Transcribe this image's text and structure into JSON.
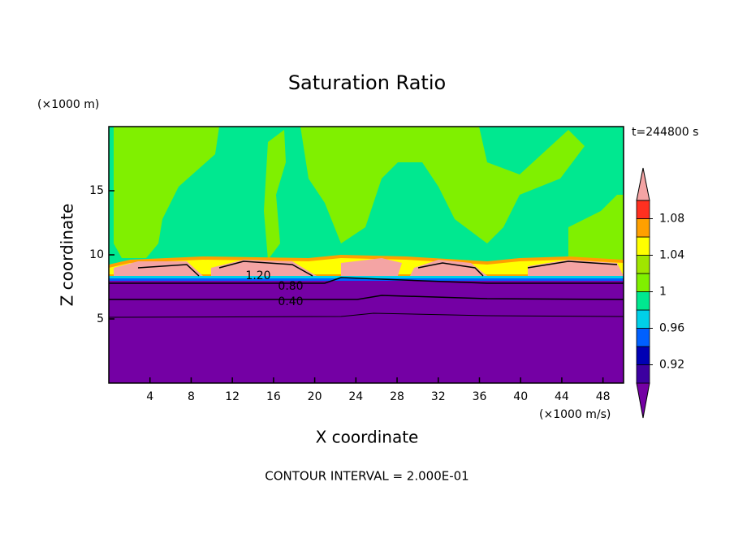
{
  "chart_data": {
    "type": "contour",
    "title": "Saturation Ratio",
    "x_label": "X coordinate",
    "y_label": "Z coordinate",
    "x_unit": "(×1000 m/s)",
    "y_unit": "(×1000 m)",
    "time_label": "t=244800 s",
    "footer": "CONTOUR INTERVAL = 2.000E-01",
    "xlim": [
      0,
      50
    ],
    "xticks": [
      4,
      8,
      12,
      16,
      20,
      24,
      28,
      32,
      36,
      40,
      44,
      48
    ],
    "ylim": [
      0,
      20
    ],
    "yticks": [
      5,
      10,
      15
    ],
    "contour_labels": [
      {
        "value": 1.2,
        "label": "1.20"
      },
      {
        "value": 0.8,
        "label": "0.80"
      },
      {
        "value": 0.4,
        "label": "0.40"
      }
    ],
    "colorbar": {
      "levels": [
        0.9,
        0.92,
        0.94,
        0.96,
        0.98,
        1,
        1.02,
        1.04,
        1.06,
        1.08,
        1.1
      ],
      "colors": [
        "#7400a4",
        "#3c00a0",
        "#0000b4",
        "#0060ff",
        "#00d0e8",
        "#00e890",
        "#80f000",
        "#a0e600",
        "#ffff00",
        "#ffa000",
        "#ff3020",
        "#f4a4a4"
      ],
      "ticks": [
        0.92,
        0.96,
        1,
        1.04,
        1.08
      ]
    }
  }
}
